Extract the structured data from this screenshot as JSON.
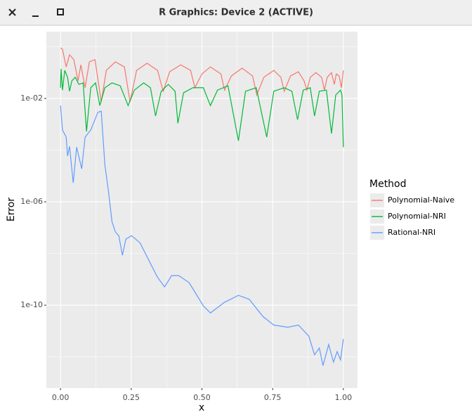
{
  "window": {
    "title": "R Graphics: Device 2 (ACTIVE)"
  },
  "chart_data": {
    "type": "line",
    "xlabel": "x",
    "ylabel": "Error",
    "legend_title": "Method",
    "legend": "right",
    "log_y": true,
    "grid": true,
    "xlim": [
      -0.05,
      1.05
    ],
    "xticks": [
      {
        "value": 0,
        "label": "0.00"
      },
      {
        "value": 0.25,
        "label": "0.25"
      },
      {
        "value": 0.5,
        "label": "0.50"
      },
      {
        "value": 0.75,
        "label": "0.75"
      },
      {
        "value": 1,
        "label": "1.00"
      }
    ],
    "ylim": [
      6.2e-14,
      3.85
    ],
    "yticks": [
      {
        "value": 0.01,
        "label": "1e-02"
      },
      {
        "value": 1e-06,
        "label": "1e-06"
      },
      {
        "value": 1e-10,
        "label": "1e-10"
      }
    ],
    "series": [
      {
        "name": "Polynomial-Naive",
        "color": "#F8766D",
        "x": [
          0,
          0.007,
          0.02,
          0.032,
          0.047,
          0.062,
          0.072,
          0.087,
          0.102,
          0.122,
          0.144,
          0.162,
          0.194,
          0.226,
          0.246,
          0.269,
          0.306,
          0.343,
          0.363,
          0.386,
          0.425,
          0.46,
          0.475,
          0.5,
          0.53,
          0.567,
          0.58,
          0.604,
          0.642,
          0.679,
          0.694,
          0.719,
          0.754,
          0.779,
          0.791,
          0.813,
          0.841,
          0.861,
          0.871,
          0.883,
          0.903,
          0.923,
          0.933,
          0.943,
          0.958,
          0.968,
          0.975,
          0.985,
          0.993,
          1.0
        ],
        "values": [
          0.91,
          0.8,
          0.166,
          0.49,
          0.32,
          0.048,
          0.2,
          0.026,
          0.26,
          0.32,
          0.0073,
          0.122,
          0.26,
          0.166,
          0.0073,
          0.122,
          0.23,
          0.122,
          0.019,
          0.108,
          0.2,
          0.122,
          0.026,
          0.089,
          0.166,
          0.089,
          0.021,
          0.074,
          0.148,
          0.074,
          0.0137,
          0.066,
          0.122,
          0.066,
          0.019,
          0.074,
          0.108,
          0.048,
          0.021,
          0.066,
          0.1,
          0.066,
          0.021,
          0.066,
          0.1,
          0.035,
          0.089,
          0.074,
          0.026,
          0.122
        ]
      },
      {
        "name": "Polynomial-NRI",
        "color": "#00BA38",
        "x": [
          0,
          0.002,
          0.007,
          0.015,
          0.025,
          0.032,
          0.04,
          0.052,
          0.065,
          0.08,
          0.092,
          0.107,
          0.124,
          0.139,
          0.157,
          0.182,
          0.211,
          0.239,
          0.261,
          0.294,
          0.318,
          0.336,
          0.356,
          0.381,
          0.405,
          0.415,
          0.435,
          0.468,
          0.505,
          0.53,
          0.555,
          0.592,
          0.629,
          0.654,
          0.692,
          0.729,
          0.754,
          0.791,
          0.818,
          0.838,
          0.858,
          0.883,
          0.898,
          0.915,
          0.94,
          0.958,
          0.973,
          0.99,
          0.995,
          1.0
        ],
        "values": [
          0.026,
          0.139,
          0.021,
          0.122,
          0.066,
          0.019,
          0.048,
          0.066,
          0.035,
          0.04,
          0.00053,
          0.026,
          0.04,
          0.0053,
          0.026,
          0.04,
          0.031,
          0.0053,
          0.021,
          0.04,
          0.026,
          0.0021,
          0.019,
          0.035,
          0.019,
          0.0011,
          0.0166,
          0.026,
          0.026,
          0.0053,
          0.021,
          0.031,
          0.00023,
          0.019,
          0.026,
          0.00032,
          0.019,
          0.026,
          0.019,
          0.0015,
          0.021,
          0.026,
          0.0021,
          0.019,
          0.021,
          0.00044,
          0.0137,
          0.021,
          0.0137,
          0.00013
        ]
      },
      {
        "name": "Rational-NRI",
        "color": "#619CFF",
        "x": [
          0,
          0.007,
          0.02,
          0.025,
          0.032,
          0.045,
          0.057,
          0.075,
          0.087,
          0.107,
          0.132,
          0.144,
          0.157,
          0.169,
          0.182,
          0.194,
          0.206,
          0.219,
          0.231,
          0.251,
          0.281,
          0.318,
          0.343,
          0.368,
          0.393,
          0.418,
          0.455,
          0.505,
          0.53,
          0.58,
          0.629,
          0.667,
          0.716,
          0.754,
          0.803,
          0.841,
          0.878,
          0.898,
          0.915,
          0.928,
          0.948,
          0.965,
          0.978,
          0.99,
          1.0
        ],
        "values": [
          0.0053,
          0.0006,
          0.00032,
          5.9e-05,
          0.00014,
          5.4e-06,
          0.00013,
          1.9e-05,
          0.00032,
          0.0006,
          0.0029,
          0.0032,
          2.6e-05,
          2.9e-06,
          1.7e-07,
          6.8e-08,
          4.9e-08,
          8.5e-09,
          3.6e-08,
          4.9e-08,
          2.6e-08,
          4.1e-09,
          1.2e-09,
          5.1e-10,
          1.4e-09,
          1.4e-09,
          7.4e-10,
          9.4e-11,
          5e-11,
          1.3e-10,
          2.4e-10,
          1.7e-10,
          3.6e-11,
          1.7e-11,
          1.4e-11,
          1.7e-11,
          6.3e-12,
          1.2e-12,
          2.2e-12,
          4.6e-13,
          3e-12,
          6.3e-13,
          1.6e-12,
          7.6e-13,
          4.9e-12
        ]
      }
    ]
  }
}
